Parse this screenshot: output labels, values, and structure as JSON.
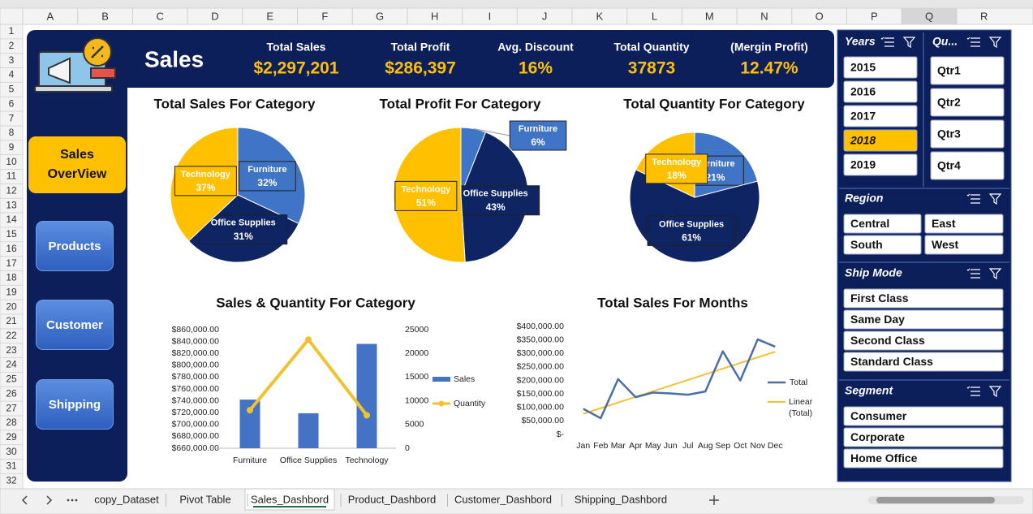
{
  "sheet": {
    "columns": [
      "A",
      "B",
      "C",
      "D",
      "E",
      "F",
      "G",
      "H",
      "I",
      "J",
      "K",
      "L",
      "M",
      "N",
      "O",
      "P",
      "Q",
      "R"
    ],
    "rows": [
      1,
      2,
      3,
      4,
      5,
      6,
      7,
      8,
      9,
      10,
      11,
      12,
      13,
      14,
      15,
      16,
      17,
      18,
      19,
      20,
      21,
      22,
      23,
      24,
      25,
      26,
      27,
      28,
      29,
      30,
      31,
      32
    ],
    "tabs": [
      "copy_Dataset",
      "Pivot Table",
      "Sales_Dashbord",
      "Product_Dashbord",
      "Customer_Dashbord",
      "Shipping_Dashbord"
    ],
    "active_tab": 2
  },
  "dashboard": {
    "title": "Sales",
    "kpis": [
      {
        "label": "Total Sales",
        "value": "$2,297,201"
      },
      {
        "label": "Total Profit",
        "value": "$286,397"
      },
      {
        "label": "Avg. Discount",
        "value": "16%"
      },
      {
        "label": "Total Quantity",
        "value": "37873"
      },
      {
        "label": "(Mergin Profit)",
        "value": "12.47%"
      }
    ],
    "nav": [
      "Sales OverView",
      "Products",
      "Customer",
      "Shipping"
    ],
    "active_nav": 0
  },
  "slicers": [
    {
      "title": "Years",
      "items": [
        "2015",
        "2016",
        "2017",
        "2018",
        "2019"
      ],
      "selected": 3
    },
    {
      "title": "Qu...",
      "items": [
        "Qtr1",
        "Qtr2",
        "Qtr3",
        "Qtr4"
      ]
    },
    {
      "title": "Region",
      "items": [
        "Central",
        "East",
        "South",
        "West"
      ]
    },
    {
      "title": "Ship Mode",
      "items": [
        "First Class",
        "Same Day",
        "Second Class",
        "Standard Class"
      ]
    },
    {
      "title": "Segment",
      "items": [
        "Consumer",
        "Corporate",
        "Home Office"
      ]
    }
  ],
  "chart_data": [
    {
      "type": "pie",
      "title": "Total Sales For Category",
      "categories": [
        "Furniture",
        "Office Supplies",
        "Technology"
      ],
      "values": [
        32,
        31,
        37
      ],
      "value_labels": [
        "32%",
        "31%",
        "37%"
      ],
      "colors": [
        "#3f74c6",
        "#0f2463",
        "#ffc000"
      ]
    },
    {
      "type": "pie",
      "title": "Total Profit For Category",
      "categories": [
        "Furniture",
        "Office Supplies",
        "Technology"
      ],
      "values": [
        6,
        43,
        51
      ],
      "value_labels": [
        "6%",
        "43%",
        "51%"
      ],
      "colors": [
        "#3f74c6",
        "#0f2463",
        "#ffc000"
      ]
    },
    {
      "type": "pie",
      "title": "Total Quantity For Category",
      "categories": [
        "Furniture",
        "Office Supplies",
        "Technology"
      ],
      "values": [
        21,
        61,
        18
      ],
      "value_labels": [
        "21%",
        "61%",
        "18%"
      ],
      "colors": [
        "#3f74c6",
        "#0f2463",
        "#ffc000"
      ]
    },
    {
      "type": "combo",
      "title": "Sales & Quantity For Category",
      "categories": [
        "Furniture",
        "Office Supplies",
        "Technology"
      ],
      "series": [
        {
          "name": "Sales",
          "type": "bar",
          "color": "#4472c4",
          "values": [
            742000,
            719000,
            836000
          ]
        },
        {
          "name": "Quantity",
          "type": "line",
          "axis": "y2",
          "color": "#f2c12e",
          "values": [
            8028,
            22906,
            6939
          ]
        }
      ],
      "ylim": [
        660000,
        860000
      ],
      "yticks": [
        {
          "value": 660000,
          "label": "$660,000.00"
        },
        {
          "value": 680000,
          "label": "$680,000.00"
        },
        {
          "value": 700000,
          "label": "$700,000.00"
        },
        {
          "value": 720000,
          "label": "$720,000.00"
        },
        {
          "value": 740000,
          "label": "$740,000.00"
        },
        {
          "value": 760000,
          "label": "$760,000.00"
        },
        {
          "value": 780000,
          "label": "$780,000.00"
        },
        {
          "value": 800000,
          "label": "$800,000.00"
        },
        {
          "value": 820000,
          "label": "$820,000.00"
        },
        {
          "value": 840000,
          "label": "$840,000.00"
        },
        {
          "value": 860000,
          "label": "$860,000.00"
        }
      ],
      "y2lim": [
        0,
        25000
      ],
      "y2ticks": [
        0,
        5000,
        10000,
        15000,
        20000,
        25000
      ]
    },
    {
      "type": "line",
      "title": "Total Sales For Months",
      "categories": [
        "Jan",
        "Feb",
        "Mar",
        "Apr",
        "May",
        "Jun",
        "Jul",
        "Aug",
        "Sep",
        "Oct",
        "Nov",
        "Dec"
      ],
      "series": [
        {
          "name": "Total",
          "color": "#4a6fa8",
          "values": [
            95000,
            60000,
            205000,
            138000,
            155000,
            152000,
            147000,
            159000,
            308000,
            200000,
            352000,
            325000
          ]
        }
      ],
      "trendline": {
        "name": "Linear (Total)",
        "color": "#f2c12e"
      },
      "ylim": [
        0,
        400000
      ],
      "yticks": [
        {
          "value": 0,
          "label": "$-"
        },
        {
          "value": 50000,
          "label": "$50,000.00"
        },
        {
          "value": 100000,
          "label": "$100,000.00"
        },
        {
          "value": 150000,
          "label": "$150,000.00"
        },
        {
          "value": 200000,
          "label": "$200,000.00"
        },
        {
          "value": 250000,
          "label": "$250,000.00"
        },
        {
          "value": 300000,
          "label": "$300,000.00"
        },
        {
          "value": 350000,
          "label": "$350,000.00"
        },
        {
          "value": 400000,
          "label": "$400,000.00"
        }
      ]
    }
  ]
}
